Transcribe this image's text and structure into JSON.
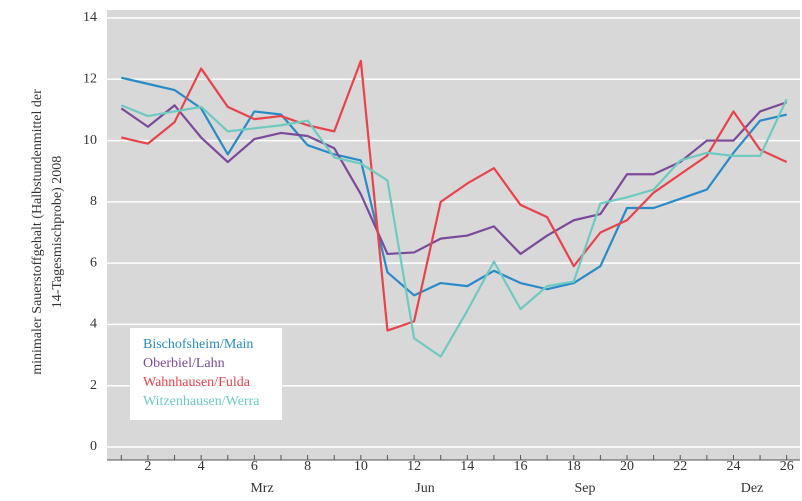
{
  "chart_data": {
    "type": "line",
    "y_label": [
      "minimaler Sauerstoffgehalt  (Halbstundenmittel der",
      "14-Tagesmischprobe) 2008"
    ],
    "x": [
      1,
      2,
      3,
      4,
      5,
      6,
      7,
      8,
      9,
      10,
      11,
      12,
      13,
      14,
      15,
      16,
      17,
      18,
      19,
      20,
      21,
      22,
      23,
      24,
      25,
      26
    ],
    "xlim": [
      0.5,
      26.5
    ],
    "xticks": [
      2,
      4,
      6,
      8,
      10,
      12,
      14,
      16,
      18,
      20,
      22,
      24,
      26
    ],
    "ylim": [
      0,
      14
    ],
    "yticks": [
      0,
      2,
      4,
      6,
      8,
      10,
      12,
      14
    ],
    "month_labels": [
      "Mrz",
      "Jun",
      "Sep",
      "Dez"
    ],
    "grid": true,
    "legend": "lower left",
    "series": [
      {
        "name": "Bischofsheim/Main",
        "color": "#2a8ac8",
        "values": [
          12.05,
          11.85,
          11.65,
          11.05,
          9.55,
          10.95,
          10.85,
          9.85,
          9.55,
          9.35,
          5.7,
          4.95,
          5.35,
          5.25,
          5.75,
          5.35,
          5.15,
          5.35,
          5.9,
          7.8,
          7.8,
          8.1,
          8.4,
          9.6,
          10.65,
          10.85
        ]
      },
      {
        "name": "Oberbiel/Lahn",
        "color": "#7b4a9a",
        "values": [
          11.05,
          10.45,
          11.15,
          10.1,
          9.3,
          10.05,
          10.25,
          10.15,
          9.75,
          8.25,
          6.3,
          6.35,
          6.8,
          6.9,
          7.2,
          6.3,
          6.9,
          7.4,
          7.6,
          8.9,
          8.9,
          9.3,
          10.0,
          10.0,
          10.95,
          11.25
        ]
      },
      {
        "name": "Wahnhausen/Fulda",
        "color": "#e8424a",
        "values": [
          10.1,
          9.9,
          10.6,
          12.35,
          11.1,
          10.7,
          10.8,
          10.5,
          10.3,
          12.6,
          3.8,
          4.1,
          8.0,
          8.6,
          9.1,
          7.9,
          7.5,
          5.9,
          7.0,
          7.4,
          8.3,
          8.9,
          9.5,
          10.95,
          9.7,
          9.3
        ]
      },
      {
        "name": "Witzenhausen/Werra",
        "color": "#6ecac0",
        "values": [
          11.15,
          10.8,
          10.95,
          11.1,
          10.3,
          10.4,
          10.5,
          10.65,
          9.45,
          9.25,
          8.7,
          3.55,
          2.95,
          4.45,
          6.05,
          4.5,
          5.25,
          5.4,
          7.95,
          8.15,
          8.4,
          9.35,
          9.6,
          9.5,
          9.5,
          11.35
        ]
      }
    ]
  }
}
